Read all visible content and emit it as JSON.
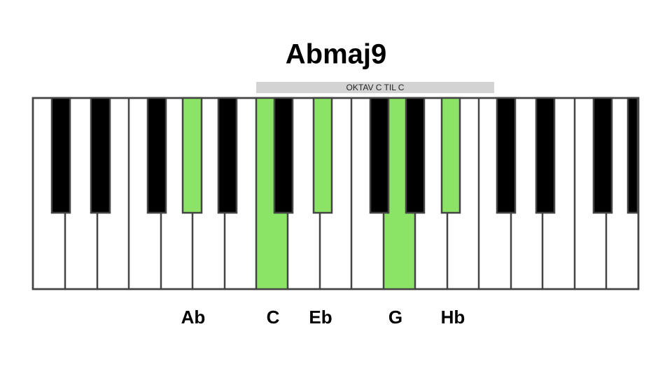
{
  "title": "Abmaj9",
  "octave_label": "OKTAV C TIL C",
  "notes": [
    "Ab",
    "C",
    "Eb",
    "G",
    "Hb"
  ]
}
